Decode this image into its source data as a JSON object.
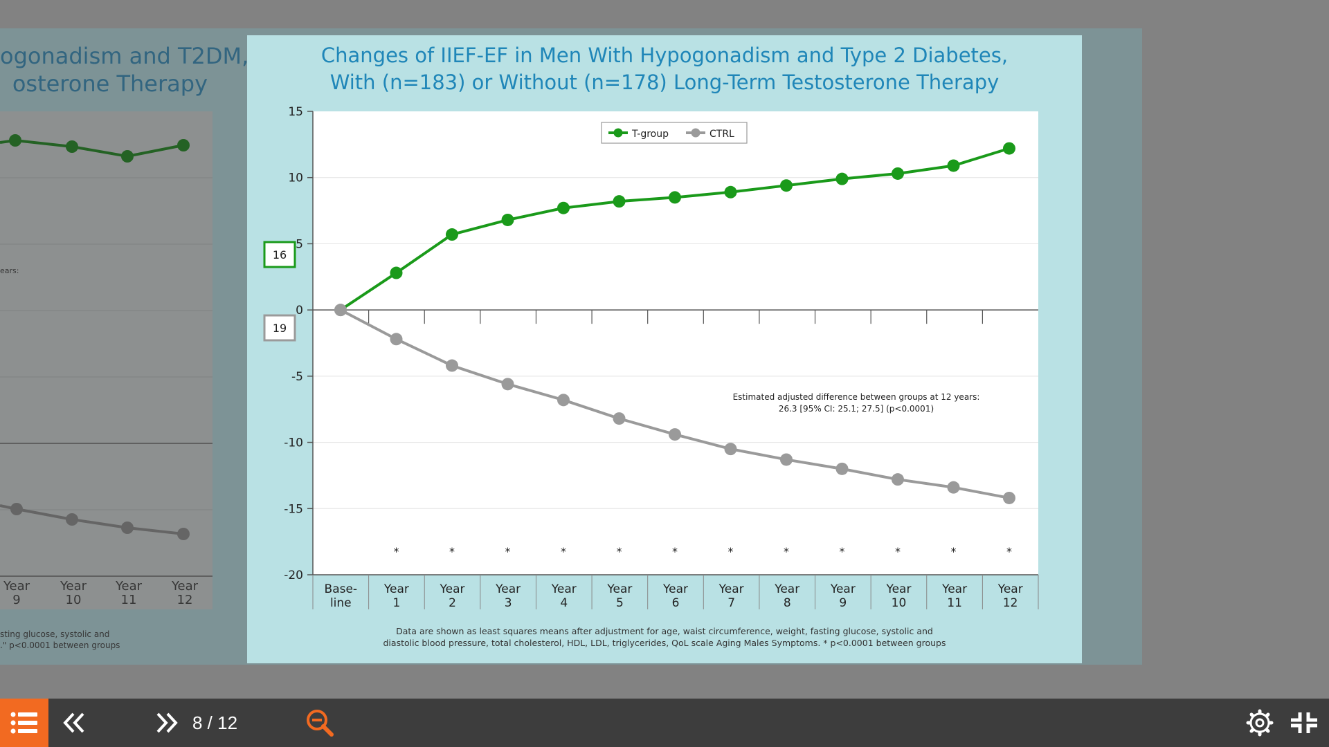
{
  "background_slide": {
    "title_lines": [
      "ogonadism and T2DM,",
      "osterone Therapy"
    ],
    "note": "ears:",
    "x_labels": [
      [
        "Year",
        "9"
      ],
      [
        "Year",
        "10"
      ],
      [
        "Year",
        "11"
      ],
      [
        "Year",
        "12"
      ]
    ],
    "footnote_lines": [
      "sting glucose, systolic and",
      ".\" p<0.0001 between groups"
    ]
  },
  "slide": {
    "title_lines": [
      "Changes of IIEF-EF in Men With Hypogonadism and Type 2 Diabetes,",
      "With (n=183) or Without (n=178) Long-Term Testosterone Therapy"
    ],
    "footnote_lines": [
      "Data are shown as least squares means after adjustment for age, waist circumference, weight, fasting glucose, systolic and",
      "diastolic blood pressure, total cholesterol, HDL, LDL, triglycerides, QoL scale Aging Males Symptoms. * p<0.0001 between groups"
    ]
  },
  "chart_data": {
    "type": "line",
    "categories": [
      [
        "Base-",
        "line"
      ],
      [
        "Year",
        "1"
      ],
      [
        "Year",
        "2"
      ],
      [
        "Year",
        "3"
      ],
      [
        "Year",
        "4"
      ],
      [
        "Year",
        "5"
      ],
      [
        "Year",
        "6"
      ],
      [
        "Year",
        "7"
      ],
      [
        "Year",
        "8"
      ],
      [
        "Year",
        "9"
      ],
      [
        "Year",
        "10"
      ],
      [
        "Year",
        "11"
      ],
      [
        "Year",
        "12"
      ]
    ],
    "series": [
      {
        "name": "T-group",
        "color": "#1a9a1a",
        "values": [
          0,
          2.8,
          5.7,
          6.8,
          7.7,
          8.2,
          8.5,
          8.9,
          9.4,
          9.9,
          10.3,
          10.9,
          12.2
        ]
      },
      {
        "name": "CTRL",
        "color": "#9a9a9a",
        "values": [
          0,
          -2.2,
          -4.2,
          -5.6,
          -6.8,
          -8.2,
          -9.4,
          -10.5,
          -11.3,
          -12.0,
          -12.8,
          -13.4,
          -14.2
        ]
      }
    ],
    "ylim": [
      -20,
      15
    ],
    "yticks": [
      15,
      10,
      5,
      0,
      -5,
      -10,
      -15,
      -20
    ],
    "grid": true,
    "legend": "top-center",
    "boxes": [
      {
        "label": "16",
        "color": "#1a9a1a"
      },
      {
        "label": "19",
        "color": "#9a9a9a"
      }
    ],
    "significance_marker": "*",
    "annotation_lines": [
      "Estimated adjusted difference between groups at 12 years:",
      "26.3 [95% CI: 25.1; 27.5] (p<0.0001)"
    ]
  },
  "toolbar": {
    "page_counter": "8 / 12",
    "accent": "#f26a21",
    "icons": {
      "menu": "list-icon",
      "prev": "double-chevron-left-icon",
      "next": "double-chevron-right-icon",
      "zoom": "zoom-out-icon",
      "settings": "gear-icon",
      "exit": "exit-fullscreen-icon"
    }
  }
}
